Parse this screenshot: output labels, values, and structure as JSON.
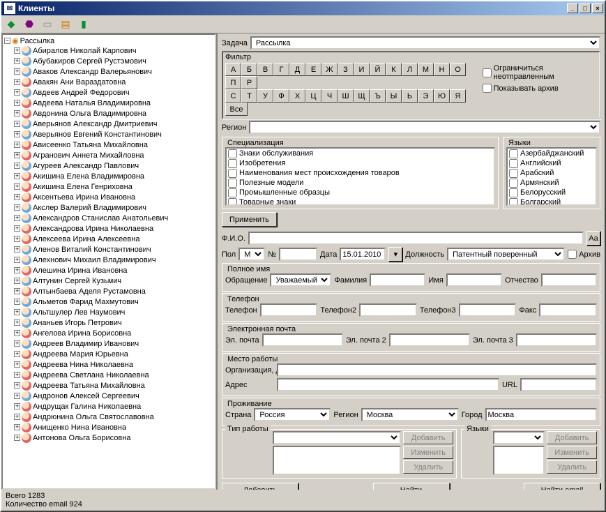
{
  "window": {
    "title": "Клиенты"
  },
  "toolbar_icons": [
    "book-icon",
    "cube-icon",
    "page-icon",
    "cards-icon",
    "door-icon"
  ],
  "tree": {
    "root": "Рассылка",
    "items": [
      {
        "g": "m",
        "name": "Абиралов Николай Карпович"
      },
      {
        "g": "m",
        "name": "Абубакиров Сергей Рустэмович"
      },
      {
        "g": "m",
        "name": "Аваков Александр Валерьянович"
      },
      {
        "g": "f",
        "name": "Авакян Ани Вараздатовна"
      },
      {
        "g": "m",
        "name": "Авдеев Андрей Федорович"
      },
      {
        "g": "f",
        "name": "Авдеева Наталья Владимировна"
      },
      {
        "g": "f",
        "name": "Авдонина Ольга Владимировна"
      },
      {
        "g": "m",
        "name": "Аверьянов Александр Дмитриевич"
      },
      {
        "g": "m",
        "name": "Аверьянов Евгений Константинович"
      },
      {
        "g": "f",
        "name": "Ависеенко Татьяна Михайловна"
      },
      {
        "g": "f",
        "name": "Агранович Аннета Михайловна"
      },
      {
        "g": "m",
        "name": "Агуреев Александр Павлович"
      },
      {
        "g": "f",
        "name": "Акишина Елена Владимировна"
      },
      {
        "g": "f",
        "name": "Акишина Елена Генриховна"
      },
      {
        "g": "f",
        "name": "Аксентьева Ирина Ивановна"
      },
      {
        "g": "m",
        "name": "Акслер Валерий Владимирович"
      },
      {
        "g": "m",
        "name": "Александров Станислав Анатольевич"
      },
      {
        "g": "f",
        "name": "Александрова Ирина Николаевна"
      },
      {
        "g": "f",
        "name": "Алексеева Ирина Алексеевна"
      },
      {
        "g": "m",
        "name": "Аленов Виталий Константинович"
      },
      {
        "g": "m",
        "name": "Алехнович Михаил Владимирович"
      },
      {
        "g": "f",
        "name": "Алешина Ирина Ивановна"
      },
      {
        "g": "m",
        "name": "Алтунин Сергей Кузьмич"
      },
      {
        "g": "f",
        "name": "Алтынбаева Аделя Рустамовна"
      },
      {
        "g": "m",
        "name": "Альметов Фарид Махмутович"
      },
      {
        "g": "m",
        "name": "Альтшулер Лев Наумович"
      },
      {
        "g": "m",
        "name": "Ананьев Игорь Петрович"
      },
      {
        "g": "f",
        "name": "Ангелова Ирина Борисовна"
      },
      {
        "g": "m",
        "name": "Андреев Владимир Иванович"
      },
      {
        "g": "f",
        "name": "Андреева Мария Юрьевна"
      },
      {
        "g": "f",
        "name": "Андреева Нина Николаевна"
      },
      {
        "g": "f",
        "name": "Андреева Светлана Николаевна"
      },
      {
        "g": "f",
        "name": "Андреева Татьяна Михайловна"
      },
      {
        "g": "m",
        "name": "Андронов Алексей Сергеевич"
      },
      {
        "g": "f",
        "name": "Андрущак Галина Николаевна"
      },
      {
        "g": "f",
        "name": "Андрюнина Ольга Святославовна"
      },
      {
        "g": "f",
        "name": "Анищенко Нина Ивановна"
      },
      {
        "g": "f",
        "name": "Антонова Ольга Борисовна"
      }
    ]
  },
  "task": {
    "label": "Задача",
    "value": "Рассылка"
  },
  "filter": {
    "label": "Фильтр",
    "row1": [
      "А",
      "Б",
      "В",
      "Г",
      "Д",
      "Е",
      "Ж",
      "З",
      "И",
      "Й",
      "К",
      "Л",
      "М",
      "Н",
      "О",
      "П",
      "Р"
    ],
    "row2": [
      "С",
      "Т",
      "У",
      "Ф",
      "Х",
      "Ц",
      "Ч",
      "Ш",
      "Щ",
      "Ъ",
      "Ы",
      "Ь",
      "Э",
      "Ю",
      "Я",
      "Все"
    ],
    "opt1": "Ограничиться неотправленным",
    "opt2": "Показывать архив"
  },
  "region": {
    "label": "Регион"
  },
  "spec": {
    "label": "Специализация",
    "items": [
      "Знаки обслуживания",
      "Изобретения",
      "Наименования мест происхождения товаров",
      "Полезные модели",
      "Промышленные образцы",
      "Товарные знаки"
    ]
  },
  "langs": {
    "label": "Языки",
    "items": [
      "Азербайджанский",
      "Английский",
      "Арабский",
      "Армянский",
      "Белорусский",
      "Болгарский"
    ]
  },
  "apply_btn": "Применить",
  "fio": {
    "label": "Ф.И.О.",
    "aa": "Аа"
  },
  "main": {
    "pol": "Пол",
    "pol_val": "М",
    "num": "№",
    "date": "Дата",
    "date_val": "15.01.2010",
    "job": "Должность",
    "job_val": "Патентный поверенный",
    "archive": "Архив"
  },
  "fullname": {
    "title": "Полное имя",
    "sal": "Обращение",
    "sal_val": "Уважаемый",
    "fam": "Фамилия",
    "name": "Имя",
    "patr": "Отчество"
  },
  "phone": {
    "title": "Телефон",
    "p1": "Телефон",
    "p2": "Телефон2",
    "p3": "Телефон3",
    "fax": "Факс"
  },
  "email": {
    "title": "Электронная почта",
    "e1": "Эл. почта",
    "e2": "Эл. почта 2",
    "e3": "Эл. почта 3"
  },
  "work": {
    "title": "Место работы",
    "org": "Организация, должность",
    "addr": "Адрес",
    "url": "URL"
  },
  "living": {
    "title": "Проживание",
    "country": "Страна",
    "country_val": "Россия",
    "region": "Регион",
    "region_val": "Москва",
    "city": "Город",
    "city_val": "Москва"
  },
  "worktype": {
    "title": "Тип работы"
  },
  "langs2": {
    "title": "Языки"
  },
  "btns": {
    "add": "Добавить",
    "edit": "Изменить",
    "del": "Удалить",
    "find": "Найти",
    "findemail": "Найти email"
  },
  "status": {
    "total_label": "Всего ",
    "total": "1283",
    "email_label": "Количество email  ",
    "email": "924"
  }
}
